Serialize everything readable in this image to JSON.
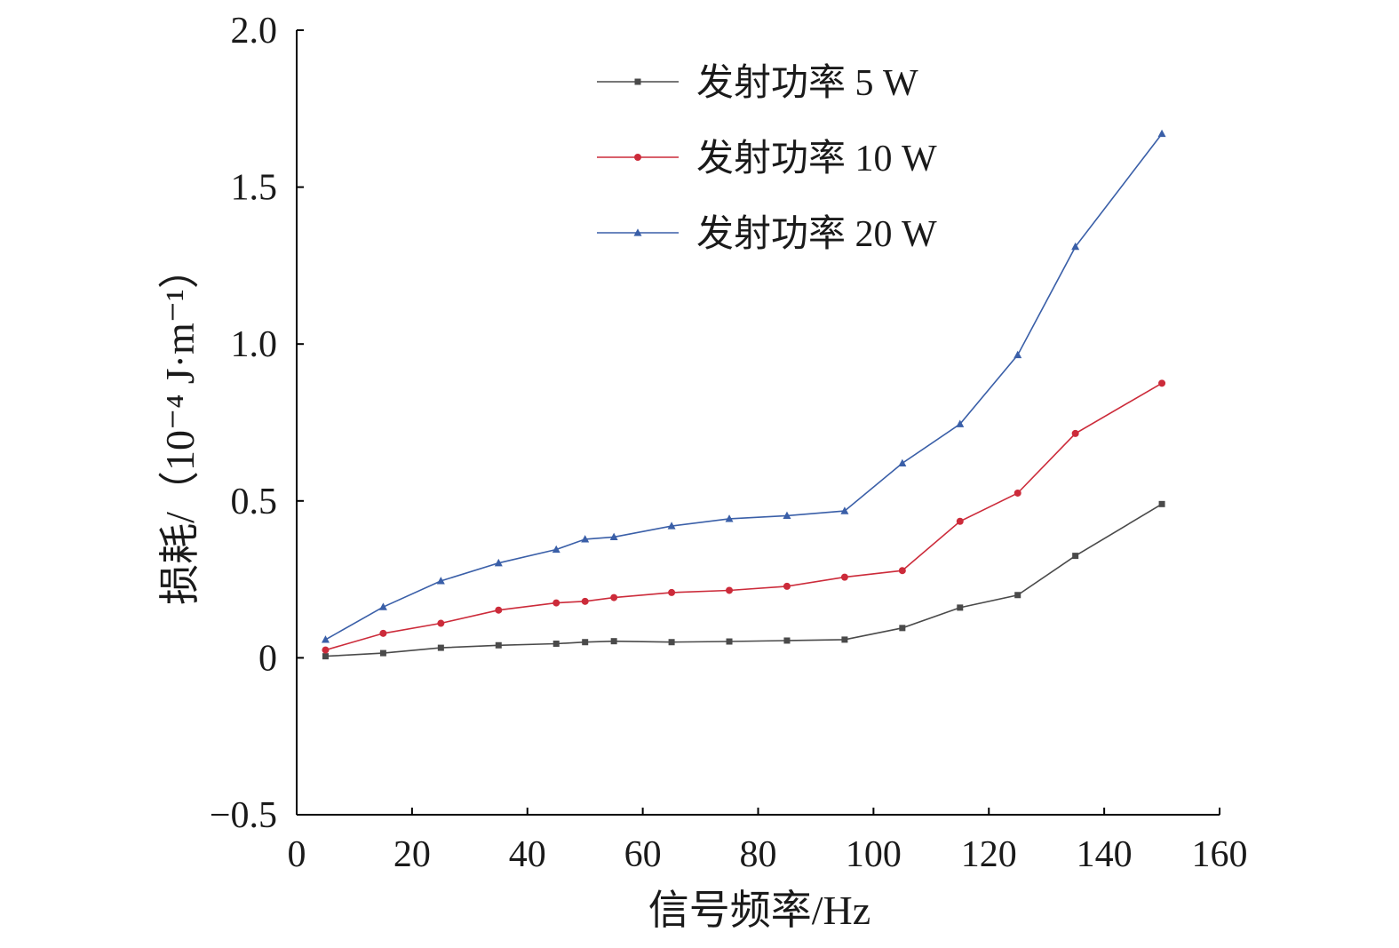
{
  "chart_data": {
    "type": "line",
    "title": "",
    "xlabel": "信号频率/Hz",
    "ylabel": "损耗/（10⁻⁴ J·m⁻¹）",
    "xlim": [
      0,
      160
    ],
    "ylim": [
      -0.5,
      2.0
    ],
    "xticks": [
      0,
      20,
      40,
      60,
      80,
      100,
      120,
      140,
      160
    ],
    "xtick_labels": [
      "0",
      "20",
      "40",
      "60",
      "80",
      "100",
      "120",
      "140",
      "160"
    ],
    "yticks": [
      -0.5,
      0,
      0.5,
      1.0,
      1.5,
      2.0
    ],
    "ytick_labels": [
      "−0.5",
      "0",
      "0.5",
      "1.0",
      "1.5",
      "2.0"
    ],
    "grid": false,
    "legend_position": "top-right",
    "x": [
      5,
      15,
      25,
      35,
      45,
      50,
      55,
      65,
      75,
      85,
      95,
      105,
      115,
      125,
      135,
      150
    ],
    "series": [
      {
        "name": "发射功率 5 W",
        "color": "#4a4a4a",
        "marker": "square",
        "values": [
          0.005,
          0.015,
          0.032,
          0.04,
          0.045,
          0.05,
          0.053,
          0.05,
          0.052,
          0.055,
          0.058,
          0.095,
          0.16,
          0.2,
          0.325,
          0.49
        ]
      },
      {
        "name": "发射功率 10 W",
        "color": "#cc2b3a",
        "marker": "circle",
        "values": [
          0.025,
          0.078,
          0.11,
          0.152,
          0.175,
          0.18,
          0.192,
          0.208,
          0.215,
          0.228,
          0.257,
          0.278,
          0.435,
          0.525,
          0.715,
          0.875
        ]
      },
      {
        "name": "发射功率 20 W",
        "color": "#3a5fa8",
        "marker": "triangle",
        "values": [
          0.058,
          0.162,
          0.245,
          0.302,
          0.345,
          0.378,
          0.385,
          0.42,
          0.443,
          0.453,
          0.468,
          0.62,
          0.745,
          0.965,
          1.31,
          1.67
        ]
      }
    ]
  }
}
